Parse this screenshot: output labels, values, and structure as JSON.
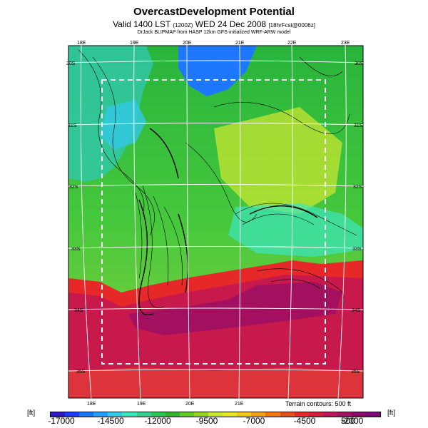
{
  "header": {
    "title": "OvercastDevelopment Potential",
    "valid_prefix": "Valid 1400 LST",
    "valid_small": "(1200Z)",
    "valid_date": "WED 24 Dec 2008",
    "valid_suffix": "[18hrFcst@0006z]",
    "model_line": "DrJack BLIPMAP from HASP 12km GFS-initialized WRF-ARW model"
  },
  "map": {
    "lon_labels_top": [
      "18E",
      "19E",
      "20E",
      "21E",
      "22E",
      "23E"
    ],
    "lon_labels_bottom": [
      "18E",
      "19E",
      "20E",
      "21E"
    ],
    "lat_labels_left": [
      "30S",
      "31S",
      "32S",
      "33S",
      "34S",
      "35S"
    ],
    "lat_labels_right": [
      "30S",
      "31S",
      "32S",
      "33S",
      "34S",
      "35S"
    ],
    "terrain_note": "Terrain contours: 500 ft"
  },
  "colorbar": {
    "unit_label": "[ft]",
    "tick_labels": [
      "-17000",
      "-14500",
      "-12000",
      "-9500",
      "-7000",
      "-4500",
      "-2000",
      "500"
    ],
    "colors": [
      "#2d18c8",
      "#1e3cff",
      "#1478ff",
      "#1ea0ff",
      "#32c8e6",
      "#3ce6be",
      "#32d28c",
      "#28c850",
      "#32b432",
      "#64c828",
      "#96d228",
      "#c8e632",
      "#e6e628",
      "#f0c81e",
      "#f0a01e",
      "#f07814",
      "#e6501e",
      "#e62828",
      "#d21e3c",
      "#be145a",
      "#a01464",
      "#8c0a6e",
      "#7a0a78"
    ]
  }
}
